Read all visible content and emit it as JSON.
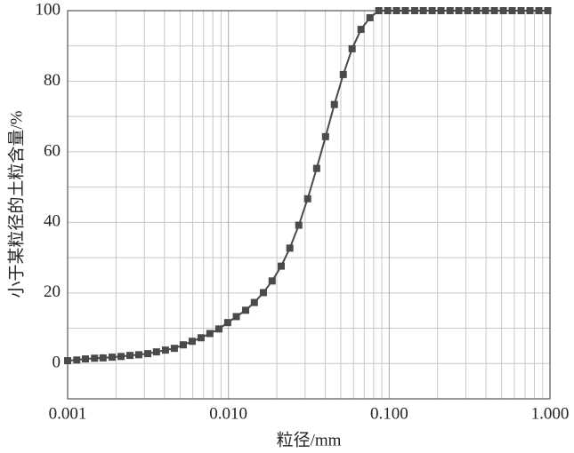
{
  "chart_data": {
    "type": "line",
    "x_label": "粒径/mm",
    "y_label": "小于某粒径的土粒含量/%",
    "xscale": "log",
    "grid": true,
    "xlim": [
      0.001,
      1
    ],
    "ylim": [
      -10,
      100
    ],
    "xticks": [
      {
        "value": 0.001,
        "label": "0.001"
      },
      {
        "value": 0.01,
        "label": "0.010"
      },
      {
        "value": 0.1,
        "label": "0.100"
      },
      {
        "value": 1,
        "label": "1.000"
      }
    ],
    "yticks": [
      0,
      20,
      40,
      60,
      80,
      100
    ],
    "y_minor_ticks": [
      10,
      30,
      50,
      70,
      90
    ],
    "series": [
      {
        "color": "#4a4a4a",
        "marker": "square",
        "x": [
          0.001,
          0.00114,
          0.00129,
          0.00147,
          0.00166,
          0.00189,
          0.00215,
          0.00244,
          0.00277,
          0.00315,
          0.00357,
          0.00406,
          0.00461,
          0.00524,
          0.00595,
          0.00676,
          0.00767,
          0.00872,
          0.0099,
          0.0112,
          0.0128,
          0.0145,
          0.0165,
          0.0187,
          0.0213,
          0.0241,
          0.0274,
          0.0311,
          0.0354,
          0.0402,
          0.0456,
          0.0518,
          0.0588,
          0.0668,
          0.0759,
          0.0862,
          0.0979,
          0.111,
          0.126,
          0.144,
          0.163,
          0.185,
          0.21,
          0.239,
          0.271,
          0.308,
          0.35,
          0.397,
          0.451,
          0.513,
          0.582,
          0.661,
          0.751,
          0.853,
          0.969
        ],
        "values": [
          0.8,
          1.0,
          1.3,
          1.5,
          1.6,
          1.8,
          2.0,
          2.3,
          2.5,
          2.8,
          3.3,
          3.8,
          4.3,
          5.3,
          6.3,
          7.3,
          8.5,
          9.8,
          11.6,
          13.3,
          15.1,
          17.3,
          20.1,
          23.4,
          27.6,
          32.7,
          39.2,
          46.7,
          55.3,
          64.3,
          73.4,
          81.9,
          89.2,
          94.7,
          98.0,
          100,
          100,
          100,
          100,
          100,
          100,
          100,
          100,
          100,
          100,
          100,
          100,
          100,
          100,
          100,
          100,
          100,
          100,
          100,
          100
        ]
      }
    ]
  }
}
